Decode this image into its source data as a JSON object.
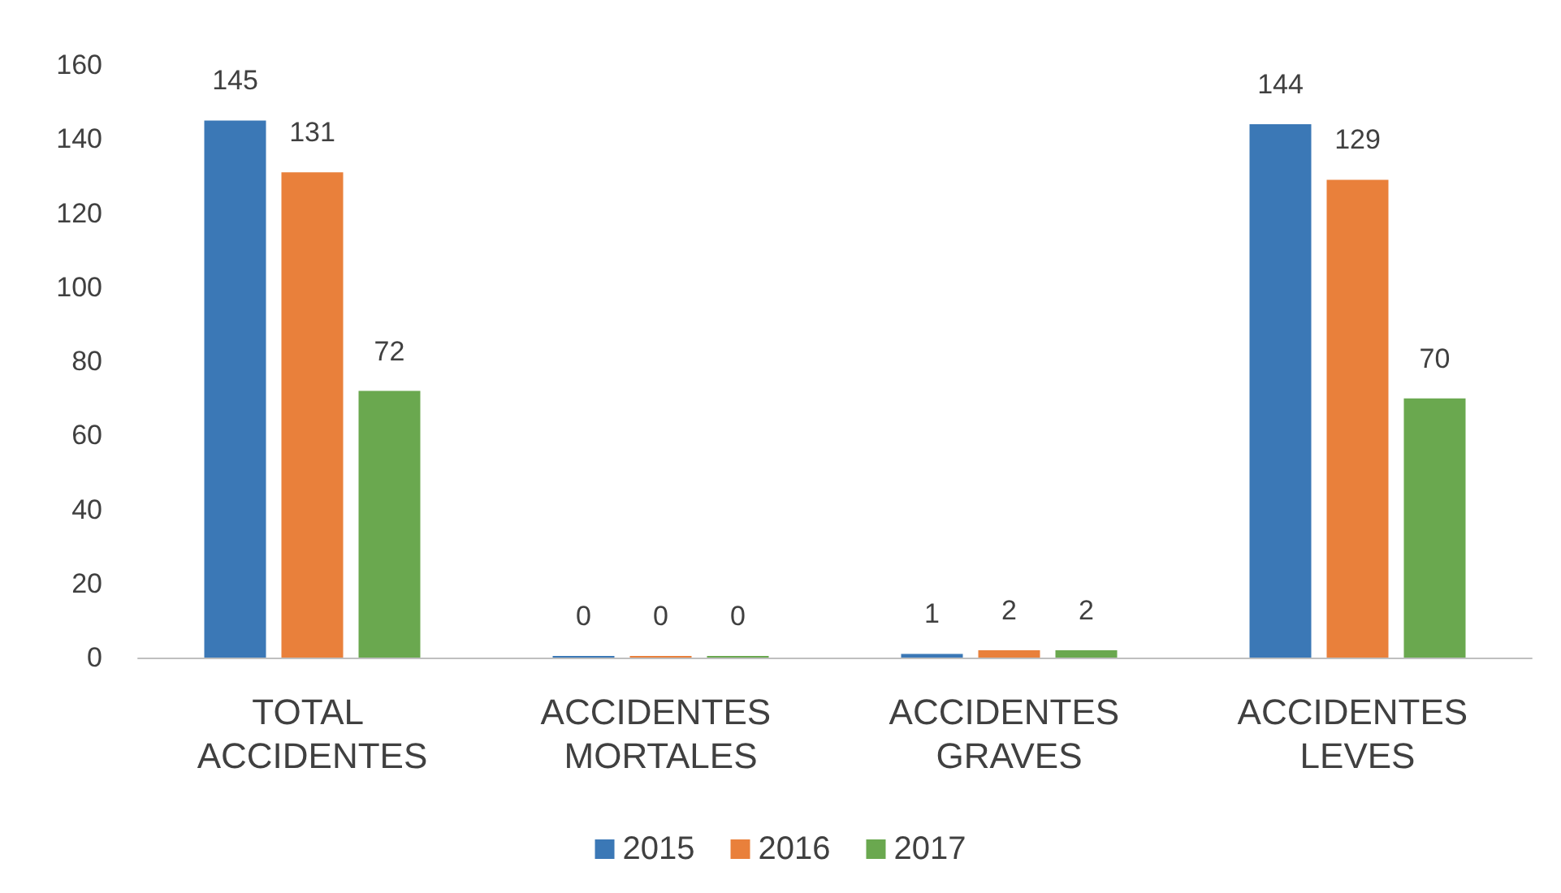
{
  "chart_data": {
    "type": "bar",
    "categories": [
      "TOTAL ACCIDENTES",
      "ACCIDENTES MORTALES",
      "ACCIDENTES GRAVES",
      "ACCIDENTES LEVES"
    ],
    "series": [
      {
        "name": "2015",
        "color": "#3b78b6",
        "values": [
          145,
          0,
          1,
          144
        ]
      },
      {
        "name": "2016",
        "color": "#e9803b",
        "values": [
          131,
          0,
          2,
          129
        ]
      },
      {
        "name": "2017",
        "color": "#6aa84f",
        "values": [
          72,
          0,
          2,
          70
        ]
      }
    ],
    "ylim": [
      0,
      160
    ],
    "yticks": [
      0,
      20,
      40,
      60,
      80,
      100,
      120,
      140,
      160
    ],
    "grid": false,
    "legend": "bottom",
    "data_labels": true
  }
}
